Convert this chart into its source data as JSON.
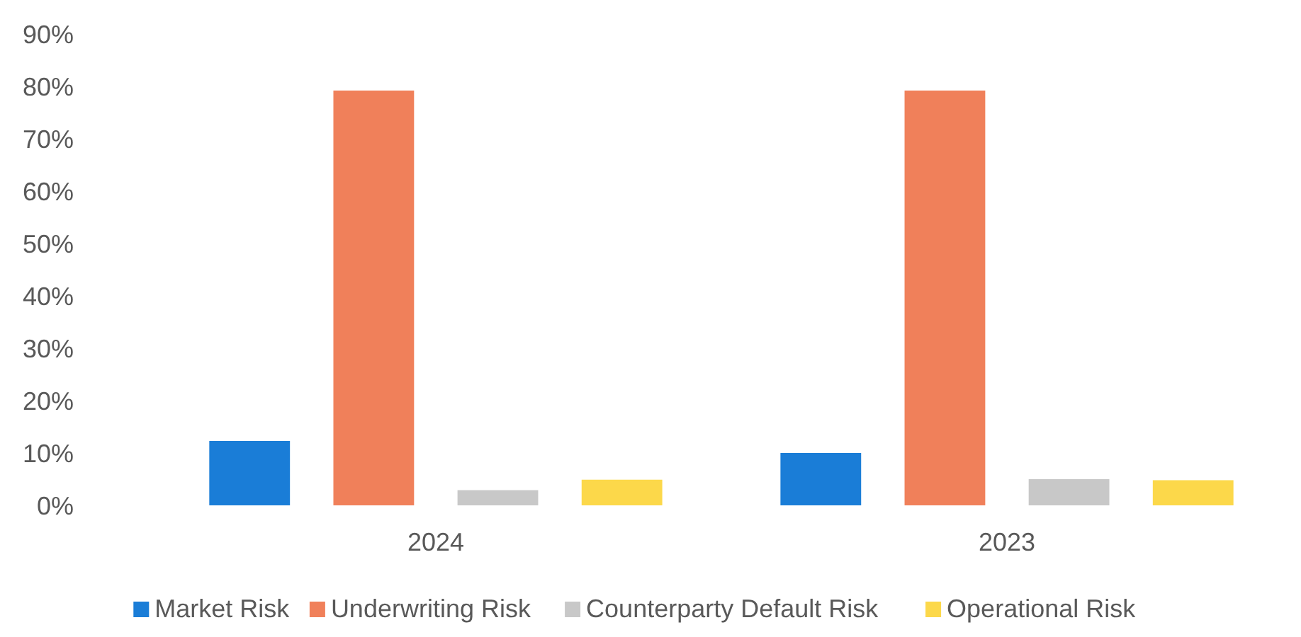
{
  "chart_data": {
    "type": "bar",
    "categories": [
      "2024",
      "2023"
    ],
    "series": [
      {
        "name": "Market Risk",
        "color": "#1a7dd7",
        "values": [
          12.3,
          10
        ]
      },
      {
        "name": "Underwriting Risk",
        "color": "#f0805a",
        "values": [
          79.2,
          79.2
        ]
      },
      {
        "name": "Counterparty Default Risk",
        "color": "#c8c8c8",
        "values": [
          2.9,
          5
        ]
      },
      {
        "name": "Operational Risk",
        "color": "#fcd84a",
        "values": [
          4.9,
          4.8
        ]
      }
    ],
    "ylim": [
      0,
      90
    ],
    "yticks": [
      {
        "value": 0,
        "label": "0%"
      },
      {
        "value": 10,
        "label": "10%"
      },
      {
        "value": 20,
        "label": "20%"
      },
      {
        "value": 30,
        "label": "30%"
      },
      {
        "value": 40,
        "label": "40%"
      },
      {
        "value": 50,
        "label": "50%"
      },
      {
        "value": 60,
        "label": "60%"
      },
      {
        "value": 70,
        "label": "70%"
      },
      {
        "value": 80,
        "label": "80%"
      },
      {
        "value": 90,
        "label": "90%"
      }
    ],
    "grid": false,
    "legend": "bottom"
  }
}
